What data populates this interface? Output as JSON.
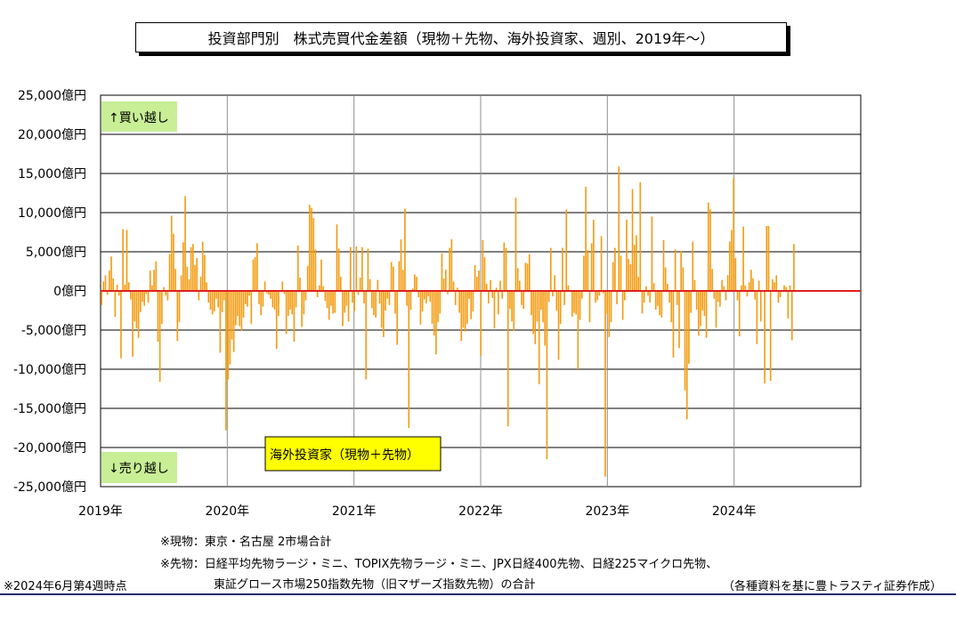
{
  "title": "投資部門別　株式売買代金差額（現物＋先物、海外投資家、週別、2019年～）",
  "labels": {
    "buy_over": "↑買い越し",
    "sell_over": "↓売り越し",
    "series_label": "海外投資家（現物＋先物）"
  },
  "notes": {
    "spot": "※現物：東京・名古屋 2市場合計",
    "futures_line1": "※先物：日経平均先物ラージ・ミニ、TOPIX先物ラージ・ミニ、JPX日経400先物、日経225マイクロ先物、",
    "futures_line2": "東証グロース市場250指数先物（旧マザーズ指数先物）の合計",
    "as_of": "※2024年6月第4週時点",
    "source": "（各種資料を基に豊トラスティ証券作成）"
  },
  "chart_data": {
    "type": "bar",
    "title": "投資部門別　株式売買代金差額（現物＋先物、海外投資家、週別、2019年～）",
    "xlabel": "",
    "ylabel": "",
    "unit": "億円",
    "ylim": [
      -25000,
      25000
    ],
    "yticks": [
      25000,
      20000,
      15000,
      10000,
      5000,
      0,
      -5000,
      -10000,
      -15000,
      -20000,
      -25000
    ],
    "ytick_labels": [
      "25,000億円",
      "20,000億円",
      "15,000億円",
      "10,000億円",
      "5,000億円",
      "0億円",
      "-5,000億円",
      "-10,000億円",
      "-15,000億円",
      "-20,000億円",
      "-25,000億円"
    ],
    "x_tick_labels": [
      "2019年",
      "2020年",
      "2021年",
      "2022年",
      "2023年",
      "2024年"
    ],
    "x_domain_years": [
      2019,
      2025
    ],
    "period_start": "2019年1月第1週",
    "period_end": "2024年6月第4週",
    "grid": true,
    "bar_color": "#f39c12",
    "zero_line_color": "#e02020",
    "series": [
      {
        "name": "海外投資家（現物＋先物）",
        "values": [
          -1800,
          1200,
          2000,
          -500,
          2600,
          4400,
          1600,
          -3300,
          800,
          -600,
          -8600,
          7900,
          800,
          7800,
          1100,
          -1100,
          -8400,
          -3900,
          -4800,
          -6000,
          -2700,
          -1400,
          -1900,
          -400,
          -1500,
          2600,
          700,
          2700,
          3800,
          -6500,
          -11600,
          -4200,
          500,
          -600,
          -1200,
          4700,
          9600,
          7300,
          2800,
          -6400,
          -4000,
          2000,
          6200,
          12100,
          3100,
          1500,
          5600,
          6000,
          3300,
          4200,
          -1200,
          1800,
          6300,
          4600,
          1100,
          -1500,
          -2400,
          -3000,
          -2600,
          -1000,
          -2100,
          -7900,
          -2700,
          -1200,
          -17800,
          -11300,
          -9400,
          -6200,
          -7800,
          -4400,
          -3200,
          -4500,
          -5100,
          -3400,
          -1700,
          -2000,
          -600,
          -4200,
          4000,
          4300,
          6100,
          -1700,
          -3100,
          -2000,
          1200,
          -300,
          -500,
          -1000,
          -2100,
          -2400,
          -7400,
          -3200,
          100,
          1200,
          -400,
          -5500,
          -3200,
          -2400,
          -3000,
          -6500,
          -2100,
          5800,
          1700,
          -4600,
          -3000,
          -1200,
          3200,
          11000,
          10600,
          9300,
          5300,
          -800,
          700,
          4000,
          600,
          -1300,
          -2200,
          -3700,
          -1900,
          -2900,
          -2800,
          8500,
          5400,
          1800,
          -4500,
          -2800,
          -1900,
          -3900,
          5600,
          -1500,
          -2600,
          5700,
          -500,
          1700,
          5600,
          -1600,
          -11300,
          5400,
          1500,
          -2200,
          -3100,
          -3400,
          1400,
          -1600,
          -4700,
          -5900,
          -2500,
          -1000,
          -1800,
          3700,
          3100,
          -2900,
          -6900,
          3800,
          6600,
          2700,
          10500,
          -1900,
          -17500,
          -2400,
          300,
          2100,
          1800,
          -800,
          -4300,
          -2600,
          -1100,
          -1600,
          -700,
          -1400,
          -4200,
          -5700,
          -8100,
          -4000,
          -2900,
          4800,
          1600,
          2700,
          -400,
          5500,
          6600,
          1200,
          -1800,
          400,
          -2800,
          -6400,
          -4700,
          -5200,
          -4200,
          -1000,
          -3600,
          -2600,
          3300,
          1800,
          2600,
          -8300,
          6500,
          4300,
          900,
          -1600,
          1400,
          -900,
          -4800,
          400,
          -3000,
          1300,
          -1000,
          6200,
          5500,
          -17300,
          -2300,
          -3900,
          -5100,
          11900,
          2900,
          1300,
          -1800,
          -2300,
          3600,
          3500,
          4700,
          -3100,
          -5500,
          -6800,
          -3900,
          -11900,
          -2400,
          -4000,
          -7000,
          -21500,
          -1400,
          5500,
          -700,
          2000,
          -2500,
          -8800,
          -4200,
          5500,
          -1800,
          10400,
          700,
          100,
          -3300,
          -2800,
          -3000,
          -10000,
          -3700,
          -1000,
          4500,
          13300,
          5200,
          -4000,
          6100,
          9100,
          -1500,
          -1200,
          -600,
          7000,
          -300,
          -23700,
          -2900,
          -5900,
          -4000,
          3700,
          5500,
          -1700,
          15900,
          4500,
          -3700,
          -1200,
          9100,
          4100,
          3400,
          13000,
          5900,
          7100,
          1800,
          13900,
          -2900,
          -1500,
          600,
          -600,
          -1500,
          9500,
          1000,
          -2400,
          -1900,
          -3100,
          -3400,
          6500,
          3000,
          900,
          -1500,
          -4000,
          -8500,
          5300,
          -1800,
          -7300,
          5100,
          3000,
          -12700,
          -16400,
          -9300,
          -2800,
          6300,
          1400,
          -2400,
          -5700,
          -4500,
          -2500,
          -3200,
          -6000,
          11300,
          10400,
          2800,
          -1000,
          -4700,
          -1400,
          -2000,
          1400,
          600,
          -1200,
          2000,
          6300,
          7800,
          14400,
          4200,
          -1200,
          -5800,
          700,
          8200,
          700,
          -700,
          1100,
          2700,
          1600,
          -1100,
          -6800,
          1300,
          -3900,
          100,
          -11800,
          8300,
          8300,
          -11500,
          1500,
          1100,
          2000,
          -1500,
          -800,
          100,
          700,
          500,
          -3500,
          700,
          -6300,
          6000
        ]
      }
    ]
  }
}
